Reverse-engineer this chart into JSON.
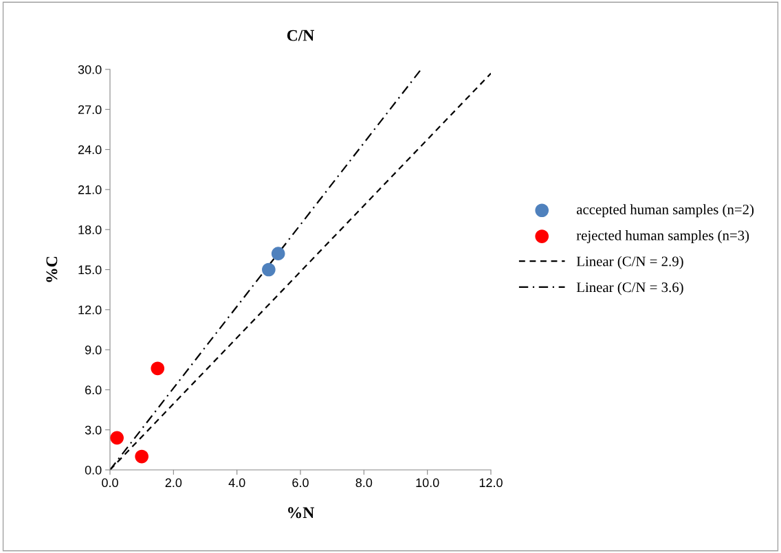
{
  "chart_data": {
    "type": "scatter",
    "title": "C/N",
    "xlabel": "%N",
    "ylabel": "%C",
    "series": [
      {
        "name": "accepted human samples (n=2)",
        "color": "#4f81bd",
        "x": [
          5.0,
          5.3
        ],
        "values": [
          15.0,
          16.2
        ],
        "marker": "circle"
      },
      {
        "name": "rejected human samples (n=3)",
        "color": "#ff0000",
        "x": [
          0.22,
          1.0,
          1.5
        ],
        "values": [
          2.4,
          1.0,
          7.6
        ],
        "marker": "circle"
      },
      {
        "name": "Linear (C/N = 2.9)",
        "type": "line",
        "color": "#000000",
        "x": [
          0,
          12.0
        ],
        "values": [
          0,
          29.7
        ],
        "line_style": "dashed",
        "marker": "none"
      },
      {
        "name": "Linear (C/N = 3.6)",
        "type": "line",
        "color": "#000000",
        "x": [
          0,
          9.8
        ],
        "values": [
          0,
          30.0
        ],
        "line_style": "dashdot",
        "marker": "none"
      }
    ],
    "xlim": [
      0,
      12
    ],
    "ylim": [
      0,
      30
    ],
    "xticks": [
      {
        "value": 0,
        "label": "0.0"
      },
      {
        "value": 2,
        "label": "2.0"
      },
      {
        "value": 4,
        "label": "4.0"
      },
      {
        "value": 6,
        "label": "6.0"
      },
      {
        "value": 8,
        "label": "8.0"
      },
      {
        "value": 10,
        "label": "10.0"
      },
      {
        "value": 12,
        "label": "12.0"
      }
    ],
    "yticks": [
      {
        "value": 0,
        "label": "0.0"
      },
      {
        "value": 3,
        "label": "3.0"
      },
      {
        "value": 6,
        "label": "6.0"
      },
      {
        "value": 9,
        "label": "9.0"
      },
      {
        "value": 12,
        "label": "12.0"
      },
      {
        "value": 15,
        "label": "15.0"
      },
      {
        "value": 18,
        "label": "18.0"
      },
      {
        "value": 21,
        "label": "21.0"
      },
      {
        "value": 24,
        "label": "24.0"
      },
      {
        "value": 27,
        "label": "27.0"
      },
      {
        "value": 30,
        "label": "30.0"
      }
    ],
    "grid": false,
    "legend": "right"
  }
}
